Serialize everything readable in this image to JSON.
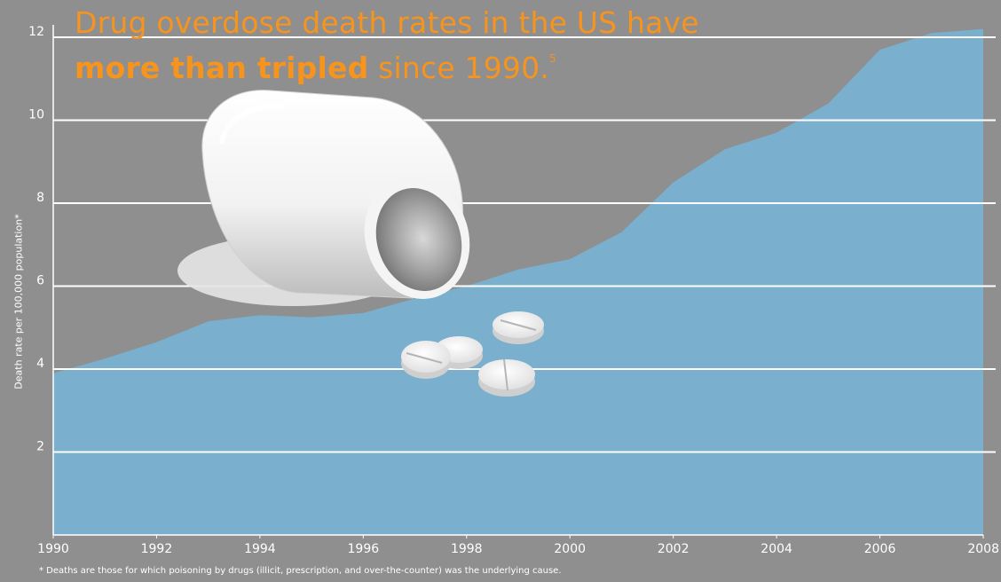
{
  "chart_data": {
    "type": "area",
    "title_part1": "Drug overdose death rates in the US have",
    "title_bold": "more than tripled",
    "title_part2": " since 1990.",
    "title_ref": "5",
    "ylabel": "Death rate per 100,000 population*",
    "footnote": "* Deaths are those for which poisoning by drugs (illicit, prescription, and over-the-counter) was the underlying cause.",
    "x": [
      1990,
      1991,
      1992,
      1993,
      1994,
      1995,
      1996,
      1997,
      1998,
      1999,
      2000,
      2001,
      2002,
      2003,
      2004,
      2005,
      2006,
      2007,
      2008
    ],
    "values": [
      3.9,
      4.25,
      4.65,
      5.15,
      5.3,
      5.25,
      5.35,
      5.7,
      6.0,
      6.4,
      6.65,
      7.3,
      8.5,
      9.3,
      9.7,
      10.4,
      11.7,
      12.1,
      12.2
    ],
    "x_ticks": [
      "1990",
      "1992",
      "1994",
      "1996",
      "1998",
      "2000",
      "2002",
      "2004",
      "2006",
      "2008"
    ],
    "y_ticks": [
      "2",
      "4",
      "6",
      "8",
      "10",
      "12"
    ],
    "xlim": [
      1990,
      2008
    ],
    "ylim": [
      0,
      12.3
    ],
    "grid": true,
    "colors": {
      "area": "#7ab0ce",
      "grid": "#ffffff",
      "title": "#f7941d",
      "background": "#8f8f8f"
    }
  }
}
